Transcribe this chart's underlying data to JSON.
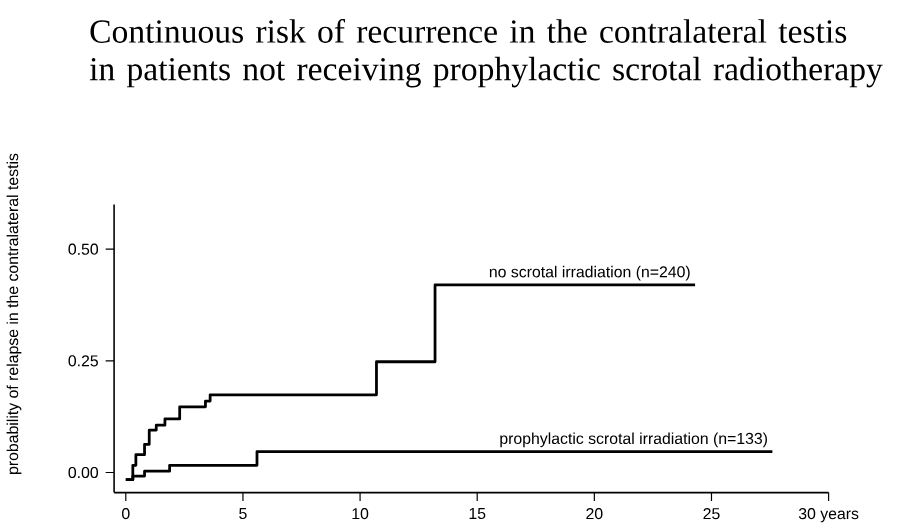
{
  "chart_data": {
    "type": "step",
    "title": "Continuous risk of recurrence in the contralateral testis in patients  not receiving  prophylactic scrotal radiotherapy",
    "ylabel": "probability of  relapse in the contralateral testis",
    "legend": false,
    "grid": false,
    "line_style": "solid",
    "marker": "none",
    "xlim": [
      -0.5,
      30
    ],
    "ylim": [
      -0.045,
      0.6
    ],
    "xticks": [
      0,
      5,
      10,
      15,
      20,
      25,
      {
        "value": 30,
        "label": "30 years"
      }
    ],
    "yticks": [
      {
        "value": 0,
        "label": "0.00"
      },
      {
        "value": 0.25,
        "label": "0.25"
      },
      {
        "value": 0.5,
        "label": "0.50"
      }
    ],
    "series": [
      {
        "name": "no scrotal irradiation (n=240)",
        "color": "#000000",
        "x": [
          0,
          0.3,
          0.43,
          0.8,
          1.0,
          1.3,
          1.67,
          2.3,
          3.2,
          3.4,
          3.6,
          10.7,
          13.2,
          24.3
        ],
        "values": [
          -0.016,
          0.016,
          0.04,
          0.063,
          0.095,
          0.106,
          0.12,
          0.147,
          0.147,
          0.16,
          0.174,
          0.248,
          0.42,
          0.42
        ]
      },
      {
        "name": "prophylactic scrotal irradiation (n=133)",
        "color": "#000000",
        "x": [
          0,
          0.3,
          0.8,
          1.87,
          5.6,
          27.6
        ],
        "values": [
          -0.016,
          -0.008,
          0.003,
          0.016,
          0.047,
          0.047
        ]
      }
    ]
  }
}
